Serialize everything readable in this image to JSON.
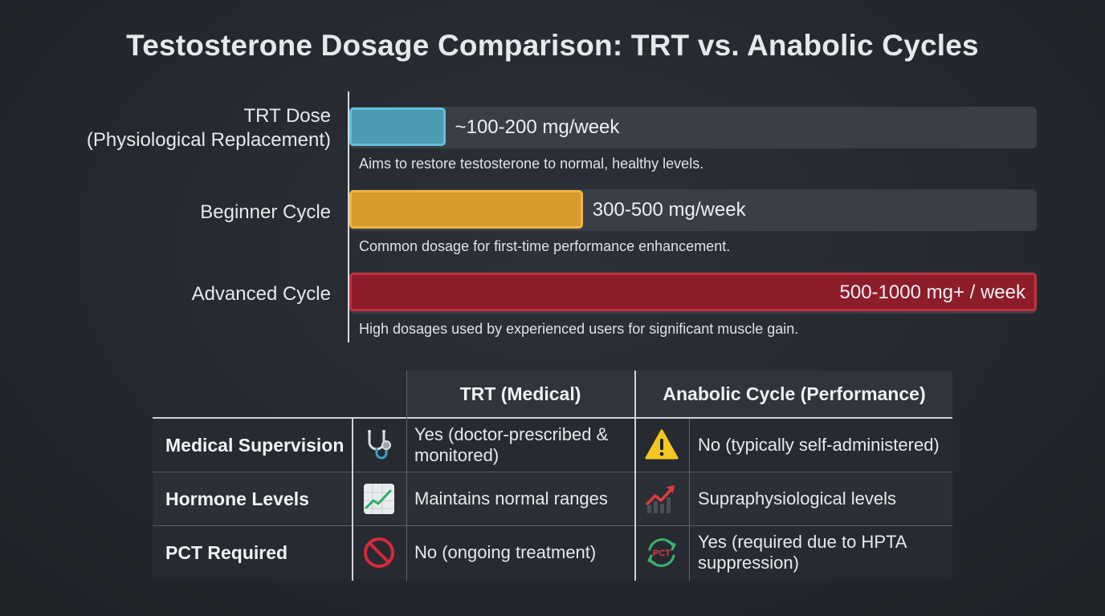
{
  "title": "Testosterone Dosage Comparison: TRT vs. Anabolic Cycles",
  "chart_data": {
    "type": "bar",
    "orientation": "horizontal",
    "categories": [
      "TRT Dose\n(Physiological Replacement)",
      "Beginner Cycle",
      "Advanced Cycle"
    ],
    "values": [
      150,
      400,
      1000
    ],
    "ranges": [
      [
        100,
        200
      ],
      [
        300,
        500
      ],
      [
        500,
        1000
      ]
    ],
    "xlim": [
      0,
      1000
    ],
    "value_labels": [
      "~100-200 mg/week",
      "300-500 mg/week",
      "500-1000 mg+ / week"
    ],
    "notes": [
      "Aims to restore testosterone to normal, healthy levels.",
      "Common dosage for first-time performance enhancement.",
      "High dosages used by experienced users for significant muscle gain."
    ],
    "colors": [
      "#4a9bb3",
      "#d89a2c",
      "#8e1d2a"
    ],
    "border_colors": [
      "#63c0dc",
      "#f1b63f",
      "#c2313f"
    ]
  },
  "table": {
    "columns": [
      "TRT (Medical)",
      "Anabolic Cycle (Performance)"
    ],
    "rows": [
      {
        "label": "Medical Supervision",
        "trt_icon": "stethoscope-icon",
        "trt": "Yes (doctor-prescribed & monitored)",
        "cycle_icon": "warning-icon",
        "cycle": "No (typically self-administered)"
      },
      {
        "label": "Hormone Levels",
        "trt_icon": "line-chart-icon",
        "trt": "Maintains normal ranges",
        "cycle_icon": "trending-up-icon",
        "cycle": "Supraphysiological levels"
      },
      {
        "label": "PCT Required",
        "trt_icon": "prohibited-icon",
        "trt": "No (ongoing treatment)",
        "cycle_icon": "pct-cycle-icon",
        "cycle": "Yes (required due to HPTA suppression)",
        "cycle_icon_text": "PCT"
      }
    ]
  }
}
